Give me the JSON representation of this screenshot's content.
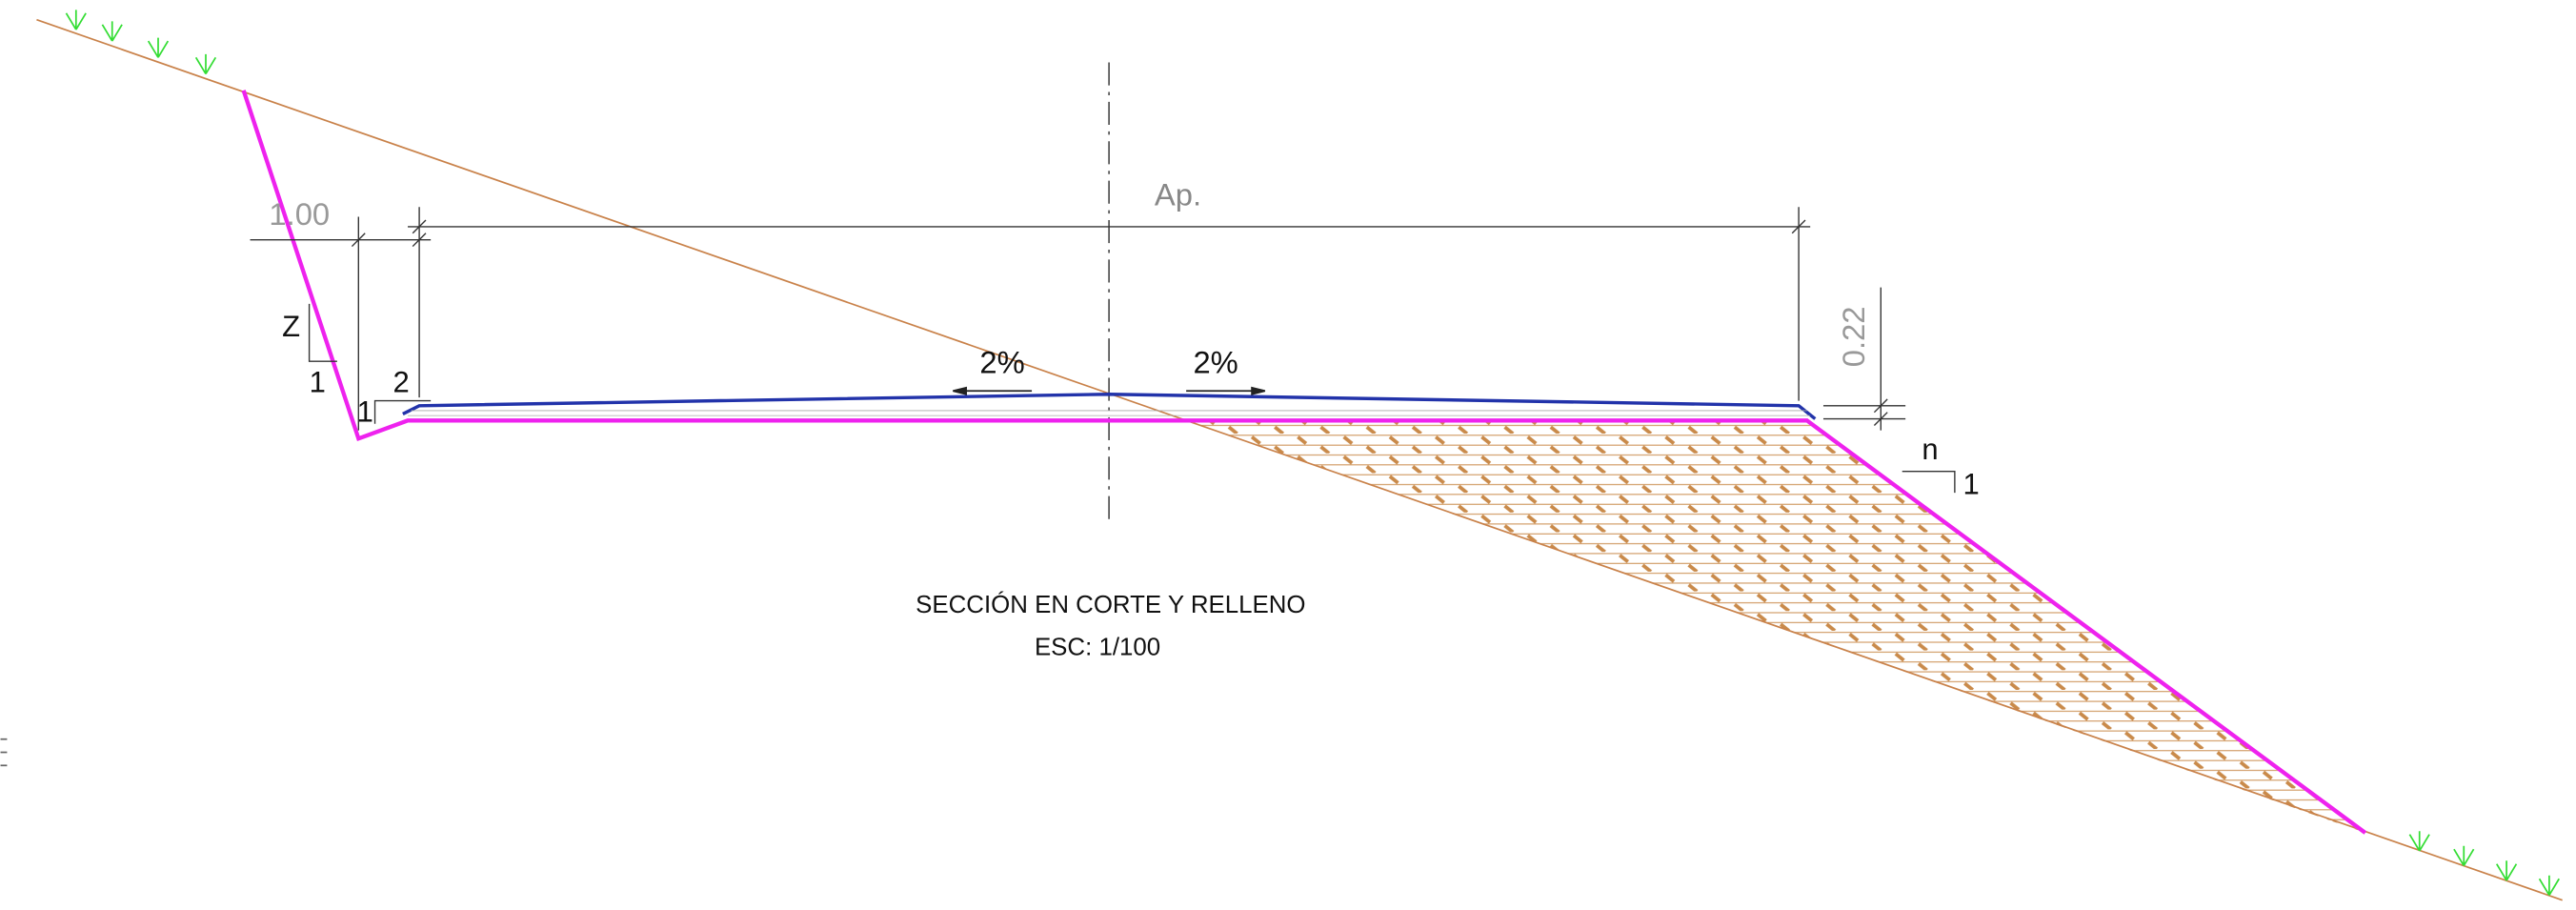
{
  "dimensions": {
    "ditch_width": "1.00",
    "pavement_width": "Ap.",
    "layer_thickness": "0.22"
  },
  "slopes": {
    "cut": {
      "rise": "Z",
      "run": "1"
    },
    "ditch": {
      "rise": "1",
      "run": "2"
    },
    "fill": {
      "run": "n",
      "rise": "1"
    }
  },
  "crossfall": {
    "left": "2%",
    "right": "2%"
  },
  "caption": {
    "title": "SECCIÓN EN CORTE Y RELLENO",
    "scale": "ESC: 1/100"
  }
}
